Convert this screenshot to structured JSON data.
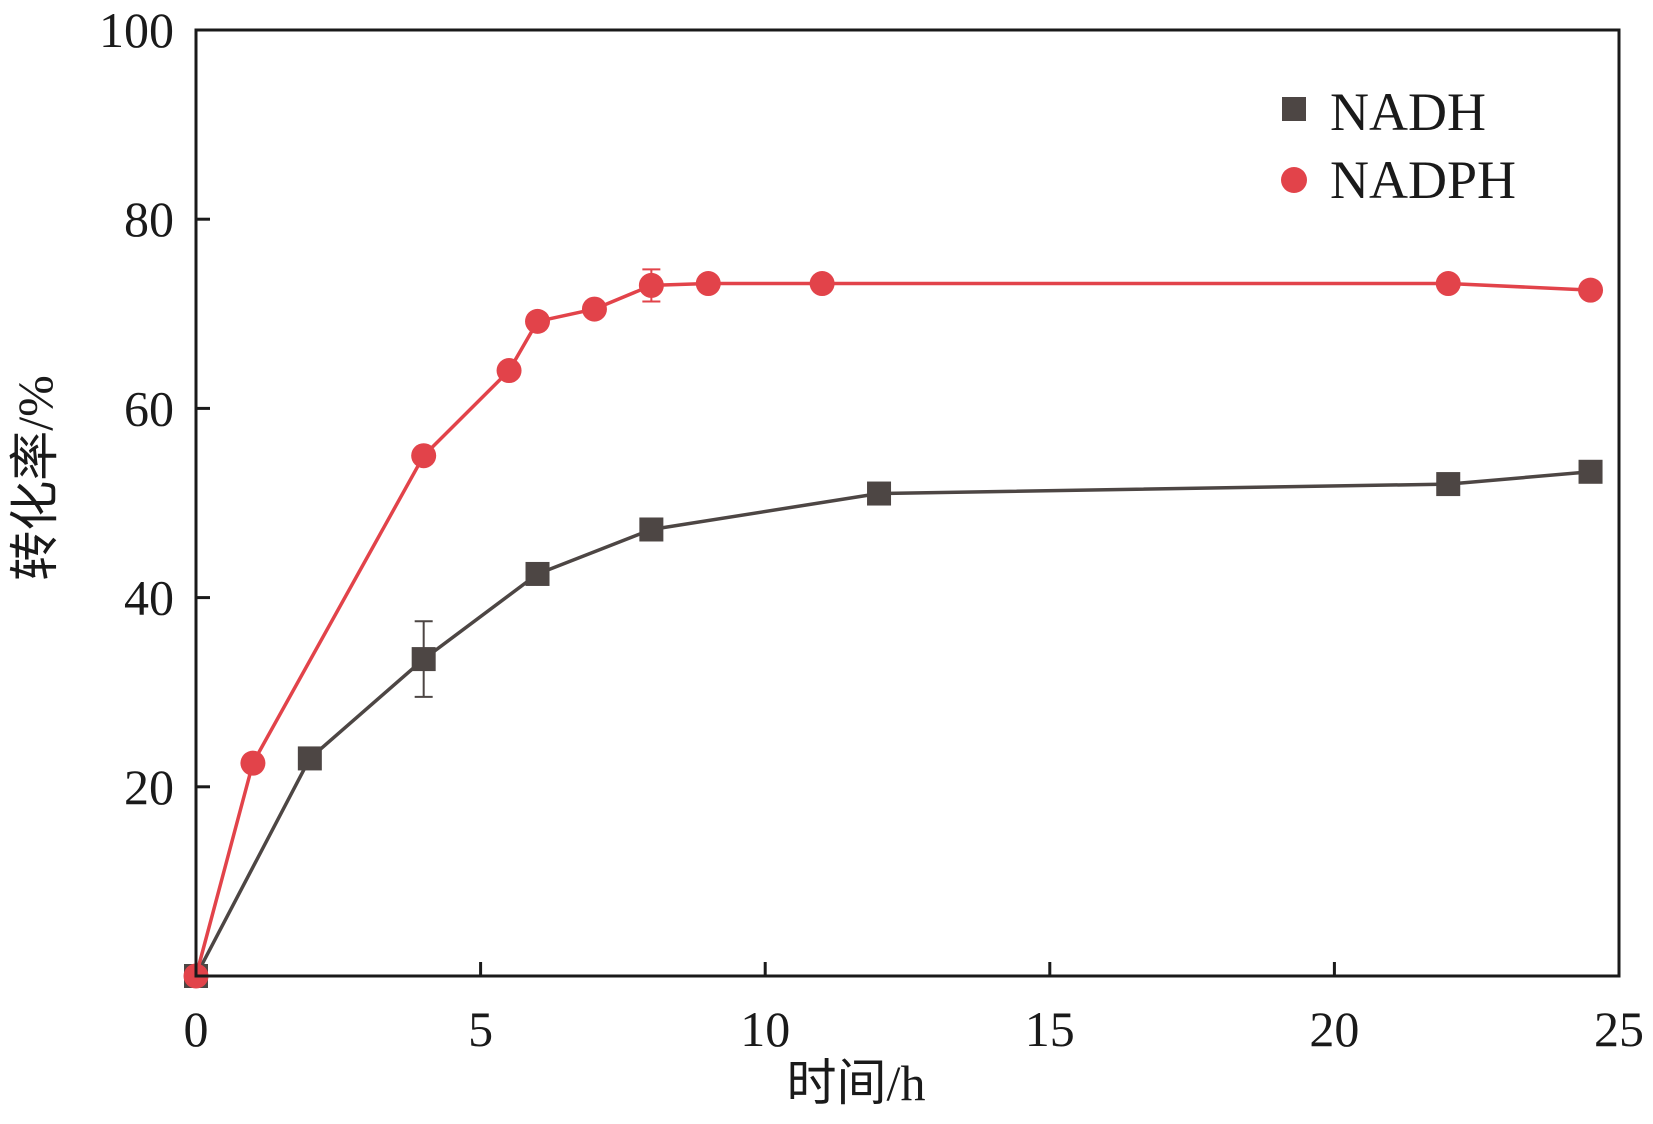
{
  "chart_data": {
    "type": "line",
    "title": "",
    "xlabel": "时间/h",
    "ylabel": "转化率/%",
    "xlim": [
      0,
      25
    ],
    "ylim": [
      0,
      100
    ],
    "xticks": [
      0,
      5,
      10,
      15,
      20,
      25
    ],
    "xtick_labels": [
      "0",
      "5",
      "10",
      "15",
      "20",
      "25"
    ],
    "yticks": [
      20,
      40,
      60,
      80,
      100
    ],
    "ytick_labels": [
      "20",
      "40",
      "60",
      "80",
      "100"
    ],
    "legend_position": "top-right",
    "grid": false,
    "series": [
      {
        "name": "NADH",
        "color": "#4d4644",
        "marker": "square",
        "x": [
          0,
          2,
          4,
          6,
          8,
          12,
          22,
          24.5
        ],
        "y": [
          0,
          23,
          33.5,
          42.5,
          47.2,
          51,
          52,
          53.3
        ],
        "error": [
          0,
          0,
          4,
          0,
          0,
          0.8,
          0,
          0
        ]
      },
      {
        "name": "NADPH",
        "color": "#e2434a",
        "marker": "circle",
        "x": [
          0,
          1,
          4,
          5.5,
          6,
          7,
          8,
          9,
          11,
          22,
          24.5
        ],
        "y": [
          0,
          22.5,
          55,
          64,
          69.2,
          70.5,
          73,
          73.2,
          73.2,
          73.2,
          72.5
        ],
        "error": [
          0,
          0,
          0.8,
          0,
          0,
          0,
          1.7,
          0,
          0,
          0,
          0
        ]
      }
    ]
  }
}
